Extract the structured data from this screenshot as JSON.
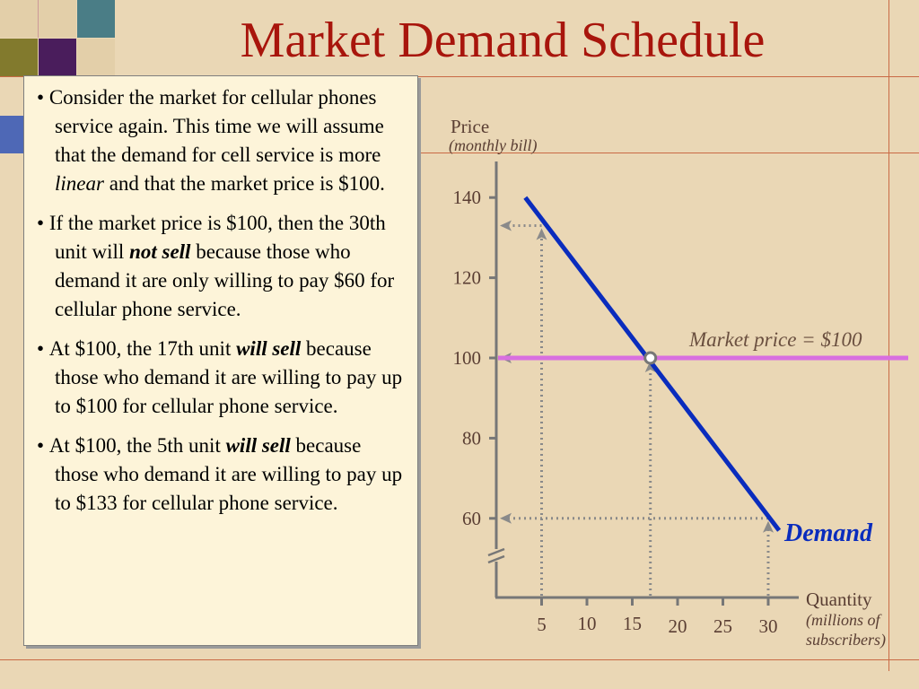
{
  "slide": {
    "title": "Market Demand Schedule"
  },
  "bullets": [
    {
      "parts": [
        "Consider the market for cellular phones service again.  This time we will assume that the demand for cell service is more ",
        "linear",
        " and that the market price is $100."
      ]
    },
    {
      "parts": [
        "If the market price is $100, then the 30th unit will ",
        "not sell",
        " because those who demand it are only willing to pay $60 for cellular phone service."
      ]
    },
    {
      "parts": [
        "At $100, the 17th unit ",
        "will sell",
        " because those who demand it are willing to pay up to $100 for cellular phone service."
      ]
    },
    {
      "parts": [
        "At $100, the 5th unit ",
        "will sell",
        " because those who demand it are willing to pay up to $133 for cellular phone service."
      ]
    }
  ],
  "chart_data": {
    "type": "line",
    "ylabel": "Price",
    "ylabel_sub": "(monthly bill)",
    "xlabel": "Quantity",
    "xlabel_sub": [
      "(millions of",
      "subscribers)"
    ],
    "y_ticks": [
      "140",
      "120",
      "100",
      "80",
      "60"
    ],
    "y_tick_values": [
      140,
      120,
      100,
      80,
      60
    ],
    "x_ticks": [
      "5",
      "10",
      "15",
      "20",
      "25",
      "30"
    ],
    "x_tick_values": [
      5,
      10,
      15,
      20,
      25,
      30
    ],
    "axis_break": true,
    "series": [
      {
        "name": "Demand",
        "color": "#0a2cbd",
        "x": [
          3.2,
          31.2
        ],
        "y": [
          140,
          57
        ]
      }
    ],
    "market_price": {
      "label": "Market price = $100",
      "value": 100,
      "color": "#d86fe0"
    },
    "equilibrium_point": {
      "x": 17,
      "y": 100
    },
    "guides": [
      {
        "x": 5,
        "y": 133
      },
      {
        "x": 17,
        "y": 100
      },
      {
        "x": 30,
        "y": 60
      }
    ],
    "colors": {
      "axis": "#777777",
      "guide": "#8a8a8a",
      "demand_label": "#0a2cbd",
      "market_label": "#6a4f3f"
    }
  }
}
